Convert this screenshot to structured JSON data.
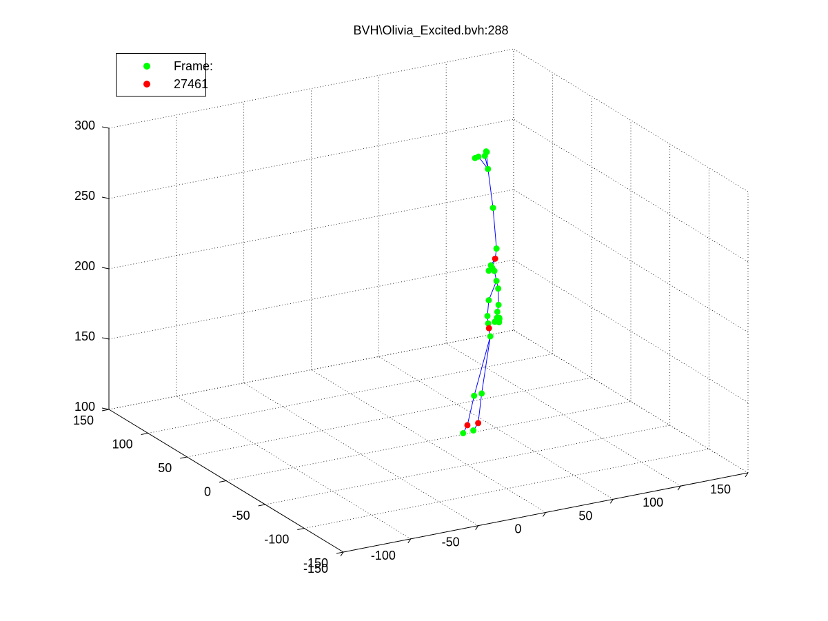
{
  "title": "BVH\\Olivia_Excited.bvh:288",
  "legend": {
    "entries": [
      {
        "label": "Frame:",
        "color": "#00ff00"
      },
      {
        "label": "27461",
        "color": "#ff0000"
      }
    ]
  },
  "colors": {
    "joint": "#00ff00",
    "highlight": "#ff0000",
    "bone": "#0000ff",
    "grid": "#000000"
  },
  "chart_data": {
    "type": "scatter",
    "projection": "3d",
    "title": "BVH\\Olivia_Excited.bvh:288",
    "xlim": [
      -150,
      150
    ],
    "ylim": [
      -150,
      150
    ],
    "zlim": [
      100,
      300
    ],
    "xticks": [
      -150,
      -100,
      -50,
      0,
      50,
      100,
      150
    ],
    "yticks": [
      -150,
      -100,
      -50,
      0,
      50,
      100,
      150
    ],
    "zticks": [
      100,
      150,
      200,
      250,
      300
    ],
    "grid": true,
    "legend_position": "top-left",
    "series": [
      {
        "name": "Frame:",
        "color": "#00ff00",
        "points": [
          {
            "id": "head-top",
            "x": 48,
            "y": 9,
            "z": 294
          },
          {
            "id": "head",
            "x": 47,
            "y": 9,
            "z": 291
          },
          {
            "id": "head-2",
            "x": 49,
            "y": 10,
            "z": 293
          },
          {
            "id": "head-3",
            "x": 44,
            "y": 12,
            "z": 290
          },
          {
            "id": "head-4",
            "x": 42,
            "y": 13,
            "z": 289
          },
          {
            "id": "neck",
            "x": 47,
            "y": 5,
            "z": 283
          },
          {
            "id": "chest",
            "x": 49,
            "y": 2,
            "z": 256
          },
          {
            "id": "spine",
            "x": 51,
            "y": 1,
            "z": 227
          },
          {
            "id": "shoulder-l",
            "x": 48,
            "y": 3,
            "z": 215
          },
          {
            "id": "shoulder-r",
            "x": 49,
            "y": 3,
            "z": 213
          },
          {
            "id": "clavicle-l",
            "x": 47,
            "y": 4,
            "z": 211
          },
          {
            "id": "clavicle-r",
            "x": 50,
            "y": 2,
            "z": 211
          },
          {
            "id": "upper-chest",
            "x": 51,
            "y": 1,
            "z": 204
          },
          {
            "id": "upper-arm-r",
            "x": 54,
            "y": 4,
            "z": 197
          },
          {
            "id": "elbow-r",
            "x": 56,
            "y": 7,
            "z": 184
          },
          {
            "id": "upper-arm-l",
            "x": 47,
            "y": 4,
            "z": 190
          },
          {
            "id": "elbow-l",
            "x": 46,
            "y": 4,
            "z": 179
          },
          {
            "id": "forearm-l",
            "x": 46,
            "y": 3,
            "z": 174
          },
          {
            "id": "hand-l",
            "x": 47,
            "y": 2,
            "z": 165
          },
          {
            "id": "wrist-r",
            "x": 58,
            "y": 12,
            "z": 177
          },
          {
            "id": "hand-r-1",
            "x": 60,
            "y": 16,
            "z": 171
          },
          {
            "id": "hand-r-2",
            "x": 62,
            "y": 17,
            "z": 170
          },
          {
            "id": "hand-r-3",
            "x": 63,
            "y": 18,
            "z": 169
          },
          {
            "id": "hand-r-4",
            "x": 59,
            "y": 17,
            "z": 168
          },
          {
            "id": "hand-r-5",
            "x": 61,
            "y": 15,
            "z": 168
          },
          {
            "id": "hand-r-6",
            "x": 60,
            "y": 13,
            "z": 172
          },
          {
            "id": "knee-l",
            "x": 35,
            "y": 2,
            "z": 125
          },
          {
            "id": "knee-r",
            "x": 40,
            "y": 1,
            "z": 126
          },
          {
            "id": "toe-l",
            "x": 28,
            "y": 4,
            "z": 99
          },
          {
            "id": "toe-r",
            "x": 35,
            "y": 3,
            "z": 100
          }
        ]
      },
      {
        "name": "27461",
        "color": "#ff0000",
        "points": [
          {
            "id": "hips",
            "x": 50,
            "y": 1,
            "z": 220
          },
          {
            "id": "hand-l-end",
            "x": 46,
            "y": 2,
            "z": 171
          },
          {
            "id": "ankle-l",
            "x": 30,
            "y": 2,
            "z": 105
          },
          {
            "id": "ankle-r",
            "x": 38,
            "y": 2,
            "z": 105
          }
        ]
      }
    ],
    "bones": [
      [
        "head",
        "neck"
      ],
      [
        "head-top",
        "neck"
      ],
      [
        "head-3",
        "neck"
      ],
      [
        "neck",
        "chest"
      ],
      [
        "chest",
        "spine"
      ],
      [
        "spine",
        "hips"
      ],
      [
        "hips",
        "shoulder-l"
      ],
      [
        "hips",
        "shoulder-r"
      ],
      [
        "shoulder-l",
        "clavicle-l"
      ],
      [
        "shoulder-r",
        "clavicle-r"
      ],
      [
        "clavicle-r",
        "upper-chest"
      ],
      [
        "upper-chest",
        "upper-arm-r"
      ],
      [
        "upper-arm-r",
        "elbow-r"
      ],
      [
        "elbow-r",
        "wrist-r"
      ],
      [
        "wrist-r",
        "hand-r-1"
      ],
      [
        "wrist-r",
        "hand-r-4"
      ],
      [
        "upper-chest",
        "upper-arm-l"
      ],
      [
        "upper-arm-l",
        "elbow-l"
      ],
      [
        "elbow-l",
        "forearm-l"
      ],
      [
        "forearm-l",
        "hand-l-end"
      ],
      [
        "hand-l-end",
        "hand-l"
      ],
      [
        "hand-l",
        "knee-l"
      ],
      [
        "hand-l",
        "knee-r"
      ],
      [
        "knee-l",
        "ankle-l"
      ],
      [
        "ankle-l",
        "toe-l"
      ],
      [
        "knee-r",
        "ankle-r"
      ],
      [
        "ankle-r",
        "toe-r"
      ]
    ]
  }
}
